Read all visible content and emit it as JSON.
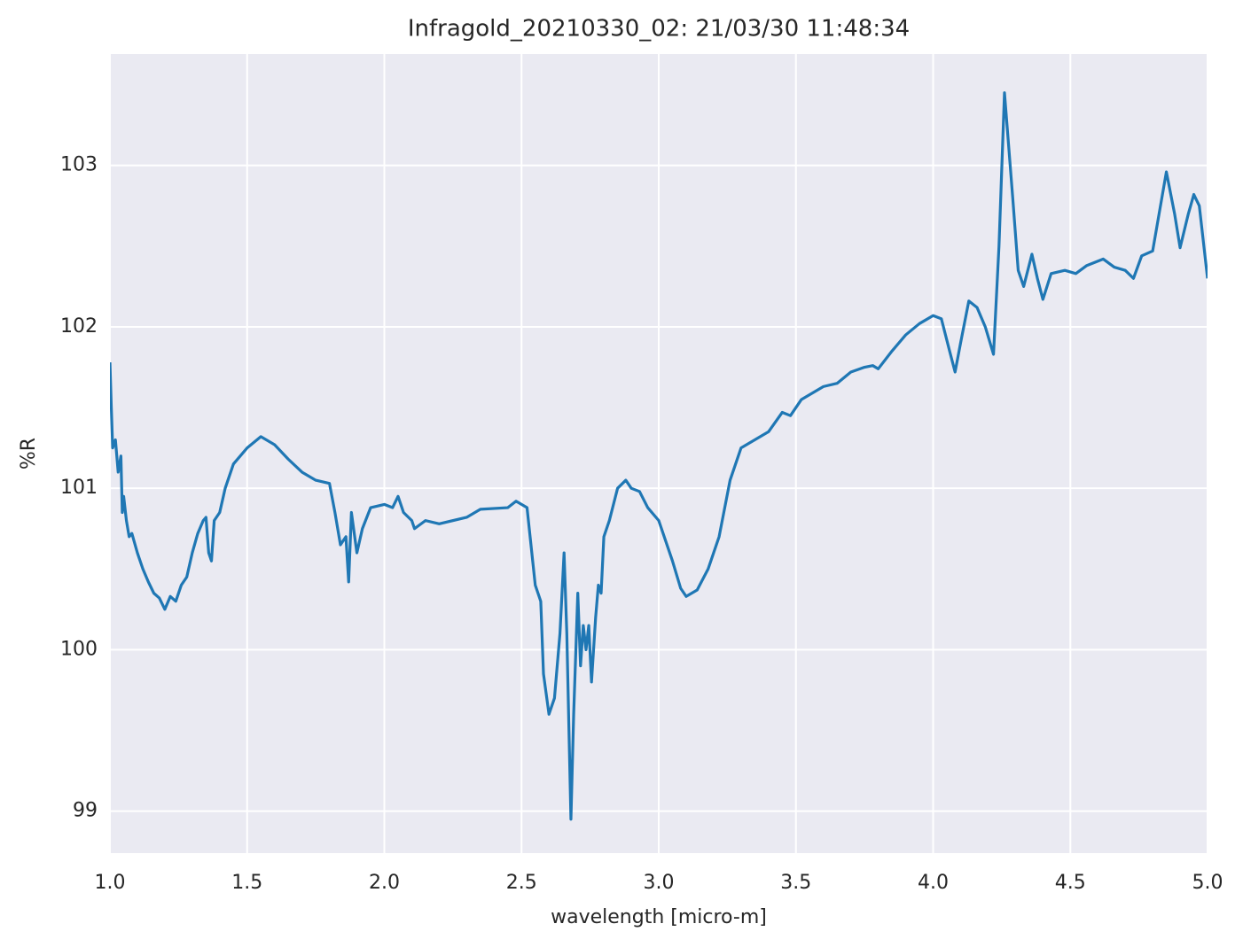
{
  "chart_data": {
    "type": "line",
    "title": "Infragold_20210330_02:  21/03/30 11:48:34",
    "xlabel": "wavelength [micro-m]",
    "ylabel": "%R",
    "color": "#1f77b4",
    "grid": true,
    "xlim": [
      1.0,
      5.0
    ],
    "ylim": [
      98.74,
      103.69
    ],
    "xticks": [
      {
        "value": 1,
        "label": "1.0"
      },
      1.5,
      {
        "value": 2,
        "label": "2.0"
      },
      2.5,
      {
        "value": 3,
        "label": "3.0"
      },
      3.5,
      {
        "value": 4,
        "label": "4.0"
      },
      4.5,
      {
        "value": 5,
        "label": "5.0"
      }
    ],
    "yticks": [
      99,
      100,
      101,
      102,
      103
    ],
    "x": [
      1.0,
      1.005,
      1.01,
      1.02,
      1.025,
      1.03,
      1.04,
      1.045,
      1.05,
      1.06,
      1.07,
      1.08,
      1.1,
      1.12,
      1.14,
      1.16,
      1.18,
      1.2,
      1.22,
      1.24,
      1.26,
      1.28,
      1.3,
      1.32,
      1.34,
      1.35,
      1.36,
      1.37,
      1.38,
      1.4,
      1.42,
      1.45,
      1.5,
      1.55,
      1.6,
      1.65,
      1.7,
      1.75,
      1.8,
      1.82,
      1.84,
      1.86,
      1.87,
      1.88,
      1.9,
      1.92,
      1.95,
      2.0,
      2.03,
      2.05,
      2.07,
      2.1,
      2.11,
      2.15,
      2.2,
      2.3,
      2.35,
      2.45,
      2.48,
      2.52,
      2.55,
      2.57,
      2.58,
      2.6,
      2.62,
      2.64,
      2.655,
      2.665,
      2.68,
      2.69,
      2.705,
      2.715,
      2.725,
      2.735,
      2.745,
      2.755,
      2.77,
      2.78,
      2.79,
      2.8,
      2.82,
      2.85,
      2.88,
      2.9,
      2.93,
      2.96,
      3.0,
      3.05,
      3.08,
      3.1,
      3.14,
      3.18,
      3.22,
      3.26,
      3.3,
      3.35,
      3.4,
      3.45,
      3.48,
      3.52,
      3.6,
      3.65,
      3.7,
      3.75,
      3.78,
      3.8,
      3.85,
      3.9,
      3.95,
      4.0,
      4.03,
      4.06,
      4.08,
      4.1,
      4.13,
      4.16,
      4.19,
      4.22,
      4.24,
      4.26,
      4.29,
      4.31,
      4.33,
      4.36,
      4.38,
      4.4,
      4.43,
      4.48,
      4.52,
      4.56,
      4.62,
      4.66,
      4.7,
      4.73,
      4.76,
      4.8,
      4.85,
      4.88,
      4.9,
      4.93,
      4.95,
      4.97,
      5.0
    ],
    "values": [
      101.78,
      101.5,
      101.25,
      101.3,
      101.2,
      101.1,
      101.2,
      100.85,
      100.95,
      100.8,
      100.7,
      100.72,
      100.6,
      100.5,
      100.42,
      100.35,
      100.32,
      100.25,
      100.33,
      100.3,
      100.4,
      100.45,
      100.6,
      100.72,
      100.8,
      100.82,
      100.6,
      100.55,
      100.8,
      100.85,
      101.0,
      101.15,
      101.25,
      101.32,
      101.27,
      101.18,
      101.1,
      101.05,
      101.03,
      100.85,
      100.65,
      100.7,
      100.42,
      100.85,
      100.6,
      100.75,
      100.88,
      100.9,
      100.88,
      100.95,
      100.85,
      100.8,
      100.75,
      100.8,
      100.78,
      100.82,
      100.87,
      100.88,
      100.92,
      100.88,
      100.4,
      100.3,
      99.85,
      99.6,
      99.7,
      100.1,
      100.6,
      100.1,
      98.95,
      99.6,
      100.35,
      99.9,
      100.15,
      100.0,
      100.15,
      99.8,
      100.2,
      100.4,
      100.35,
      100.7,
      100.8,
      101.0,
      101.05,
      101.0,
      100.98,
      100.88,
      100.8,
      100.55,
      100.38,
      100.33,
      100.37,
      100.5,
      100.7,
      101.05,
      101.25,
      101.3,
      101.35,
      101.47,
      101.45,
      101.55,
      101.63,
      101.65,
      101.72,
      101.75,
      101.76,
      101.74,
      101.85,
      101.95,
      102.02,
      102.07,
      102.05,
      101.85,
      101.72,
      101.9,
      102.16,
      102.12,
      102.0,
      101.83,
      102.5,
      103.45,
      102.8,
      102.35,
      102.25,
      102.45,
      102.3,
      102.17,
      102.33,
      102.35,
      102.33,
      102.38,
      102.42,
      102.37,
      102.35,
      102.3,
      102.44,
      102.47,
      102.96,
      102.7,
      102.49,
      102.7,
      102.82,
      102.75,
      102.3
    ]
  }
}
